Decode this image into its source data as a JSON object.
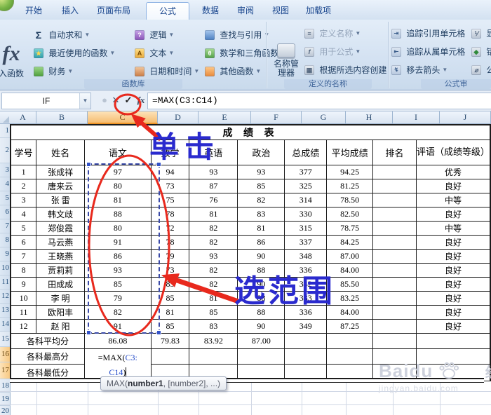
{
  "tabs": {
    "items": [
      {
        "label": "开始",
        "active": false
      },
      {
        "label": "插入",
        "active": false
      },
      {
        "label": "页面布局",
        "active": false
      },
      {
        "label": "公式",
        "active": true
      },
      {
        "label": "数据",
        "active": false
      },
      {
        "label": "审阅",
        "active": false
      },
      {
        "label": "视图",
        "active": false
      },
      {
        "label": "加载项",
        "active": false
      }
    ]
  },
  "ribbon": {
    "insert_function": {
      "glyph": "fx",
      "label": "入函数"
    },
    "function_library": {
      "label": "函数库",
      "items": [
        {
          "label": "自动求和",
          "glyph": "Σ"
        },
        {
          "label": "最近使用的函数",
          "glyph": "★"
        },
        {
          "label": "财务",
          "glyph": ""
        },
        {
          "label": "逻辑",
          "glyph": "?"
        },
        {
          "label": "文本",
          "glyph": "A"
        },
        {
          "label": "日期和时间",
          "glyph": ""
        },
        {
          "label": "查找与引用",
          "glyph": ""
        },
        {
          "label": "数学和三角函数",
          "glyph": "θ"
        },
        {
          "label": "其他函数",
          "glyph": ""
        }
      ]
    },
    "defined_names": {
      "label": "定义的名称",
      "big_button": "名称管理器",
      "items": [
        {
          "label": "定义名称",
          "disabled": true
        },
        {
          "label": "用于公式",
          "disabled": true
        },
        {
          "label": "根据所选内容创建",
          "disabled": false
        }
      ]
    },
    "auditing": {
      "label": "公式审",
      "items": [
        {
          "label": "追踪引用单元格"
        },
        {
          "label": "追踪从属单元格"
        },
        {
          "label": "移去箭头"
        }
      ],
      "cut_items": [
        "显",
        "错",
        "公"
      ]
    }
  },
  "formula_bar": {
    "name_box": "IF",
    "formula": "=MAX(C3:C14)"
  },
  "sheet": {
    "column_letters": [
      "A",
      "B",
      "C",
      "D",
      "E",
      "F",
      "G",
      "H",
      "I",
      "J"
    ],
    "selected_column": "C",
    "title": "成 绩 表",
    "header": [
      "学号",
      "姓名",
      "语文",
      "数学",
      "英语",
      "政治",
      "总成绩",
      "平均成绩",
      "排名",
      "评语（成绩等级）"
    ],
    "rows": [
      {
        "cells": [
          "1",
          "张成祥",
          "97",
          "94",
          "93",
          "93",
          "377",
          "94.25",
          "",
          "优秀"
        ]
      },
      {
        "cells": [
          "2",
          "唐来云",
          "80",
          "73",
          "87",
          "85",
          "325",
          "81.25",
          "",
          "良好"
        ]
      },
      {
        "cells": [
          "3",
          "张 雷",
          "81",
          "75",
          "76",
          "82",
          "314",
          "78.50",
          "",
          "中等"
        ]
      },
      {
        "cells": [
          "4",
          "韩文歧",
          "88",
          "78",
          "81",
          "83",
          "330",
          "82.50",
          "",
          "良好"
        ]
      },
      {
        "cells": [
          "5",
          "郑俊霞",
          "80",
          "72",
          "82",
          "81",
          "315",
          "78.75",
          "",
          "中等"
        ]
      },
      {
        "cells": [
          "6",
          "马云燕",
          "91",
          "78",
          "82",
          "86",
          "337",
          "84.25",
          "",
          "良好"
        ]
      },
      {
        "cells": [
          "7",
          "王晓燕",
          "86",
          "79",
          "93",
          "90",
          "348",
          "87.00",
          "",
          "良好"
        ]
      },
      {
        "cells": [
          "8",
          "贾莉莉",
          "93",
          "73",
          "82",
          "88",
          "336",
          "84.00",
          "",
          "良好"
        ]
      },
      {
        "cells": [
          "9",
          "田成成",
          "85",
          "85",
          "82",
          "90",
          "342",
          "85.50",
          "",
          "良好"
        ]
      },
      {
        "cells": [
          "10",
          "李 明",
          "79",
          "85",
          "81",
          "88",
          "333",
          "83.25",
          "",
          "良好"
        ]
      },
      {
        "cells": [
          "11",
          "欧阳丰",
          "82",
          "81",
          "85",
          "88",
          "336",
          "84.00",
          "",
          "良好"
        ]
      },
      {
        "cells": [
          "12",
          "赵 阳",
          "91",
          "85",
          "83",
          "90",
          "349",
          "87.25",
          "",
          "良好"
        ]
      }
    ],
    "summary": [
      {
        "label": "各科平均分",
        "values": [
          "86.08",
          "79.83",
          "83.92",
          "87.00"
        ]
      },
      {
        "label": "各科最高分"
      },
      {
        "label": "各科最低分"
      }
    ],
    "formula_cell": {
      "line1_black": "=MAX(",
      "line1_blue": "C3:",
      "line2_blue": "C14",
      "line2_black": ")"
    },
    "row_numbers": [
      "1",
      "2",
      "3",
      "4",
      "5",
      "6",
      "7",
      "8",
      "9",
      "10",
      "11",
      "12",
      "13",
      "14",
      "15",
      "16",
      "17",
      "18",
      "19",
      "20"
    ]
  },
  "tooltip": {
    "prefix": "MAX(",
    "bold": "number1",
    "suffix": ", [number2], ...)"
  },
  "annotations": {
    "click_label": "单击",
    "range_label": "选范围"
  },
  "watermark": {
    "brand": "Baidu",
    "suffix": "经验",
    "url": "jingyan.baidu.com"
  },
  "colors": {
    "annotation_red": "#e8291d",
    "annotation_blue": "#2a2ace",
    "selected_column": "#f6bd72",
    "range_border": "#3a4aa8"
  }
}
